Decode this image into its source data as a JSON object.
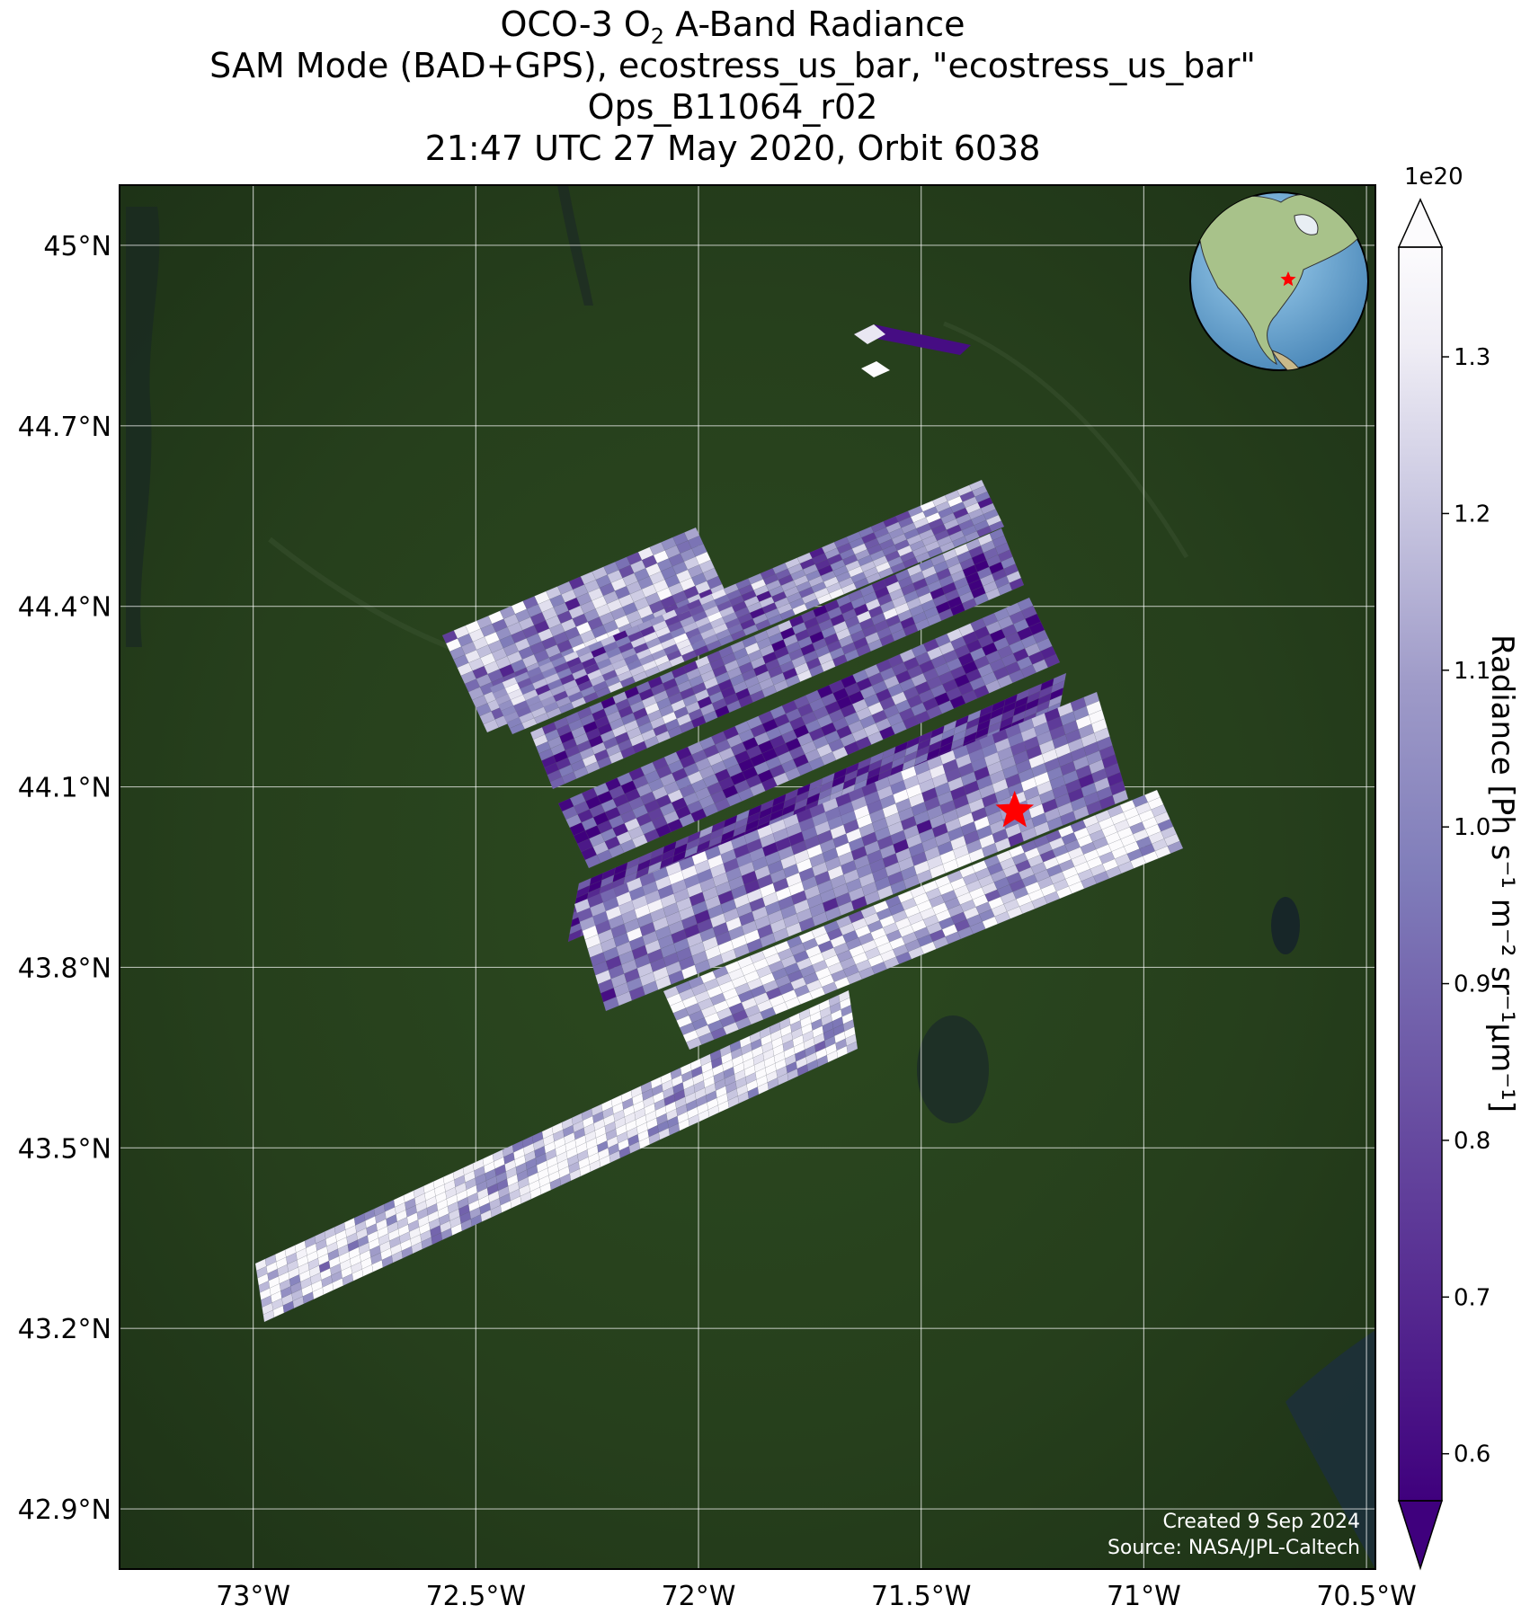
{
  "title": {
    "line1_pre": "OCO-3 O",
    "line1_sub": "2",
    "line1_post": " A-Band Radiance",
    "line2": "SAM Mode (BAD+GPS), ecostress_us_bar, \"ecostress_us_bar\"",
    "line3": "Ops_B11064_r02",
    "line4": "21:47 UTC 27 May 2020, Orbit 6038"
  },
  "credit": {
    "created": "Created 9 Sep 2024",
    "source": "Source: NASA/JPL-Caltech"
  },
  "colorbar": {
    "exponent": "1e20",
    "label_text": "Radiance [Ph s⁻¹ m⁻² sr⁻¹μm⁻¹]",
    "colormap": "Purples_r",
    "color_low": "#3f007d",
    "color_mid": "#8a86bf",
    "color_high": "#fcfbfd",
    "range": [
      0.57,
      1.37
    ],
    "ticks": [
      "0.6",
      "0.7",
      "0.8",
      "0.9",
      "1.0",
      "1.1",
      "1.2",
      "1.3"
    ],
    "extend": "both"
  },
  "map": {
    "background": "satellite imagery",
    "lon_range": [
      -73.3,
      -70.48
    ],
    "lat_range": [
      42.8,
      45.1
    ],
    "lon_ticks": [
      "73°W",
      "72.5°W",
      "72°W",
      "71.5°W",
      "71°W",
      "70.5°W"
    ],
    "lat_ticks": [
      "45°N",
      "44.7°N",
      "44.4°N",
      "44.1°N",
      "43.8°N",
      "43.5°N",
      "43.2°N",
      "42.9°N"
    ],
    "gridlines": true,
    "target_marker": {
      "symbol": "star",
      "color": "#ff0000",
      "lon": -71.29,
      "lat": 44.06
    },
    "inset_globe": {
      "content": "globe view centered on North America",
      "marker_color": "#ff0000"
    }
  },
  "chart_data": {
    "type": "heatmap",
    "title": "OCO-3 O2 A-Band Radiance",
    "colorbar_label": "Radiance [Ph s⁻¹ m⁻² sr⁻¹μm⁻¹]",
    "value_scale": "1e20",
    "swaths": [
      {
        "id": "swath-1",
        "approx_value_range": [
          0.6,
          1.37
        ],
        "dominant": "mixed purple/white"
      },
      {
        "id": "swath-2",
        "approx_value_range": [
          0.6,
          1.37
        ],
        "dominant": "mixed purple/white"
      },
      {
        "id": "swath-3",
        "approx_value_range": [
          0.6,
          1.3
        ],
        "dominant": "purple"
      },
      {
        "id": "swath-4",
        "approx_value_range": [
          0.6,
          1.3
        ],
        "dominant": "dark purple"
      },
      {
        "id": "swath-5",
        "approx_value_range": [
          0.6,
          1.37
        ],
        "dominant": "purple to white"
      },
      {
        "id": "swath-6",
        "approx_value_range": [
          0.7,
          1.37
        ],
        "dominant": "white"
      },
      {
        "id": "swath-7",
        "approx_value_range": [
          0.6,
          1.37
        ],
        "dominant": "white"
      },
      {
        "id": "swath-8",
        "approx_value_range": [
          0.6,
          1.0
        ],
        "dominant": "dark purple"
      }
    ]
  }
}
